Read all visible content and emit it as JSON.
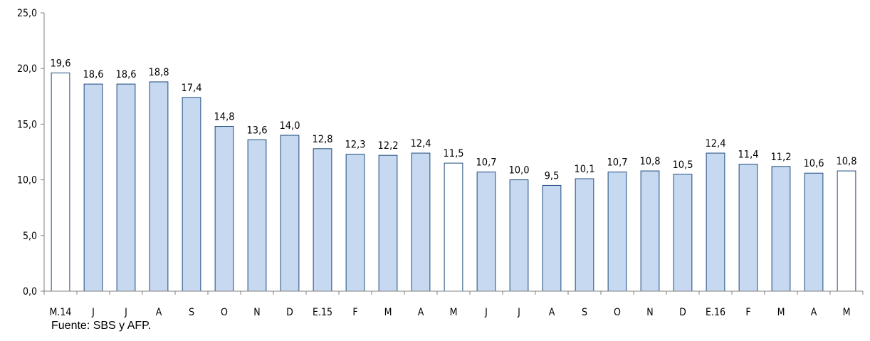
{
  "chart_data": {
    "type": "bar",
    "categories": [
      "M.14",
      "J",
      "J",
      "A",
      "S",
      "O",
      "N",
      "D",
      "E.15",
      "F",
      "M",
      "A",
      "M",
      "J",
      "J",
      "A",
      "S",
      "O",
      "N",
      "D",
      "E.16",
      "F",
      "M",
      "A",
      "M"
    ],
    "values": [
      19.6,
      18.6,
      18.6,
      18.8,
      17.4,
      14.8,
      13.6,
      14.0,
      12.8,
      12.3,
      12.2,
      12.4,
      11.5,
      10.7,
      10.0,
      9.5,
      10.1,
      10.7,
      10.8,
      10.5,
      12.4,
      11.4,
      11.2,
      10.6,
      10.8
    ],
    "value_labels": [
      "19,6",
      "18,6",
      "18,6",
      "18,8",
      "17,4",
      "14,8",
      "13,6",
      "14,0",
      "12,8",
      "12,3",
      "12,2",
      "12,4",
      "11,5",
      "10,7",
      "10,0",
      "9,5",
      "10,1",
      "10,7",
      "10,8",
      "10,5",
      "12,4",
      "11,4",
      "11,2",
      "10,6",
      "10,8"
    ],
    "highlighted": [
      true,
      false,
      false,
      false,
      false,
      false,
      false,
      false,
      false,
      false,
      false,
      false,
      true,
      false,
      false,
      false,
      false,
      false,
      false,
      false,
      false,
      false,
      false,
      false,
      true
    ],
    "ylim": [
      0,
      25
    ],
    "yticks": [
      "0,0",
      "5,0",
      "10,0",
      "15,0",
      "20,0",
      "25,0"
    ],
    "title": "",
    "xlabel": "",
    "ylabel": "",
    "grid": false,
    "legend": "none",
    "colors": {
      "bar_fill": "#c6d9f1",
      "highlight_fill": "#ffffff",
      "bar_stroke": "#1f497d",
      "axis": "#808080"
    }
  },
  "source_note": "Fuente: SBS y AFP."
}
